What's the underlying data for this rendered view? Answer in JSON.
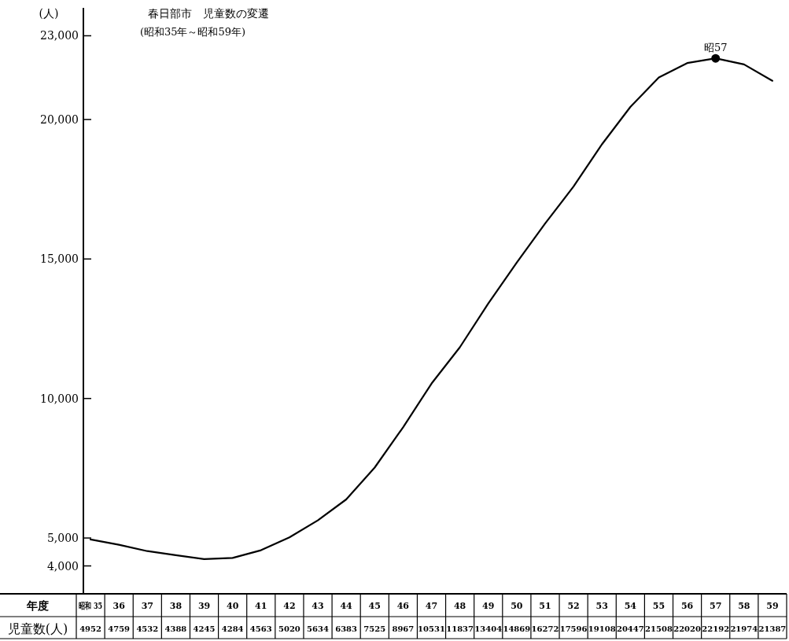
{
  "chart_data": {
    "type": "line",
    "title": "春日部市　児童数の変遷",
    "subtitle": "(昭和35年～昭和59年)",
    "ylabel": "(人)",
    "xlabel": "年度",
    "categories": [
      "昭和 35",
      "36",
      "37",
      "38",
      "39",
      "40",
      "41",
      "42",
      "43",
      "44",
      "45",
      "46",
      "47",
      "48",
      "49",
      "50",
      "51",
      "52",
      "53",
      "54",
      "55",
      "56",
      "57",
      "58",
      "59"
    ],
    "values": [
      4952,
      4759,
      4532,
      4388,
      4245,
      4284,
      4563,
      5020,
      5634,
      6383,
      7525,
      8967,
      10531,
      11837,
      13404,
      14869,
      16272,
      17596,
      19108,
      20447,
      21508,
      22020,
      22192,
      21974,
      21387
    ],
    "color": "#000000",
    "line_style": "solid",
    "data_labels": true,
    "ylim": [
      3000,
      24000
    ],
    "yticks": [
      {
        "value": 4000,
        "label": "4,000"
      },
      {
        "value": 5000,
        "label": "5,000"
      },
      {
        "value": 10000,
        "label": "10,000"
      },
      {
        "value": 15000,
        "label": "15,000"
      },
      {
        "value": 20000,
        "label": "20,000"
      },
      {
        "value": 23000,
        "label": "23,000"
      }
    ],
    "annotations": [
      {
        "text": "昭57",
        "x": "57",
        "y": 22192
      },
      "児童数(人)"
    ]
  }
}
